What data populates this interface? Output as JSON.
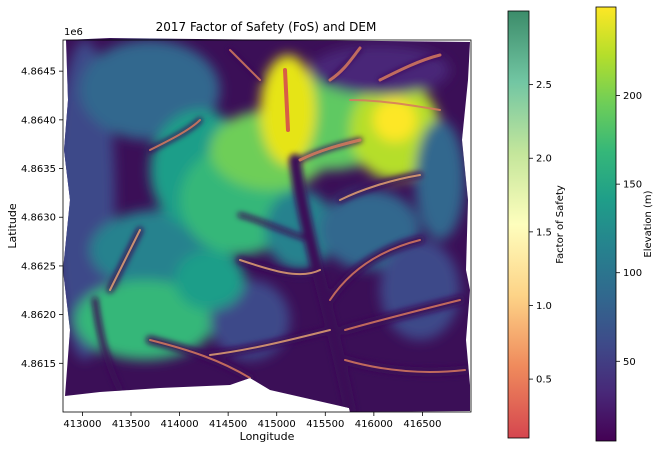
{
  "chart_data": {
    "type": "heatmap",
    "title": "2017 Factor of Safety (FoS) and DEM",
    "xlabel": "Longitude",
    "ylabel": "Latitude",
    "y_offset_label": "1e6",
    "xlim": [
      412800,
      417000
    ],
    "ylim": [
      4.861,
      4.86482
    ],
    "x_ticks": [
      {
        "value": 413000,
        "label": "413000"
      },
      {
        "value": 413500,
        "label": "413500"
      },
      {
        "value": 414000,
        "label": "414000"
      },
      {
        "value": 414500,
        "label": "414500"
      },
      {
        "value": 415000,
        "label": "415000"
      },
      {
        "value": 415500,
        "label": "415500"
      },
      {
        "value": 416000,
        "label": "416000"
      },
      {
        "value": 416500,
        "label": "416500"
      }
    ],
    "y_ticks": [
      {
        "value": 4.8615,
        "label": "4.8615"
      },
      {
        "value": 4.862,
        "label": "4.8620"
      },
      {
        "value": 4.8625,
        "label": "4.8625"
      },
      {
        "value": 4.863,
        "label": "4.8630"
      },
      {
        "value": 4.8635,
        "label": "4.8635"
      },
      {
        "value": 4.864,
        "label": "4.8640"
      },
      {
        "value": 4.8645,
        "label": "4.8645"
      }
    ],
    "colorbars": [
      {
        "label": "Factor of Safety",
        "colormap": "Spectral (alpha)",
        "range": [
          0.1,
          3.0
        ],
        "colors": [
          "#d5464f",
          "#ef8a5c",
          "#fdd387",
          "#fefebd",
          "#c4e69b",
          "#72c6a3",
          "#3c8c6a"
        ],
        "ticks": [
          {
            "value": 0.5,
            "label": "0.5"
          },
          {
            "value": 1.0,
            "label": "1.0"
          },
          {
            "value": 1.5,
            "label": "1.5"
          },
          {
            "value": 2.0,
            "label": "2.0"
          },
          {
            "value": 2.5,
            "label": "2.5"
          }
        ]
      },
      {
        "label": "Elevation (m)",
        "colormap": "viridis",
        "range": [
          5,
          250
        ],
        "colors": [
          "#440154",
          "#482878",
          "#3e4a89",
          "#31688e",
          "#26828e",
          "#1f9e89",
          "#35b779",
          "#6ece58",
          "#b5de2b",
          "#fde725"
        ],
        "ticks": [
          {
            "value": 50,
            "label": "50"
          },
          {
            "value": 100,
            "label": "100"
          },
          {
            "value": 150,
            "label": "150"
          },
          {
            "value": 200,
            "label": "200"
          }
        ]
      }
    ],
    "map_colors": {
      "low": "#3b0f57",
      "mid_low": "#39568c",
      "mid": "#21908d",
      "mid_high": "#5ec962",
      "high": "#e6e419",
      "fos_low": "#d87a5e",
      "fos_mid": "#e2a273"
    }
  }
}
